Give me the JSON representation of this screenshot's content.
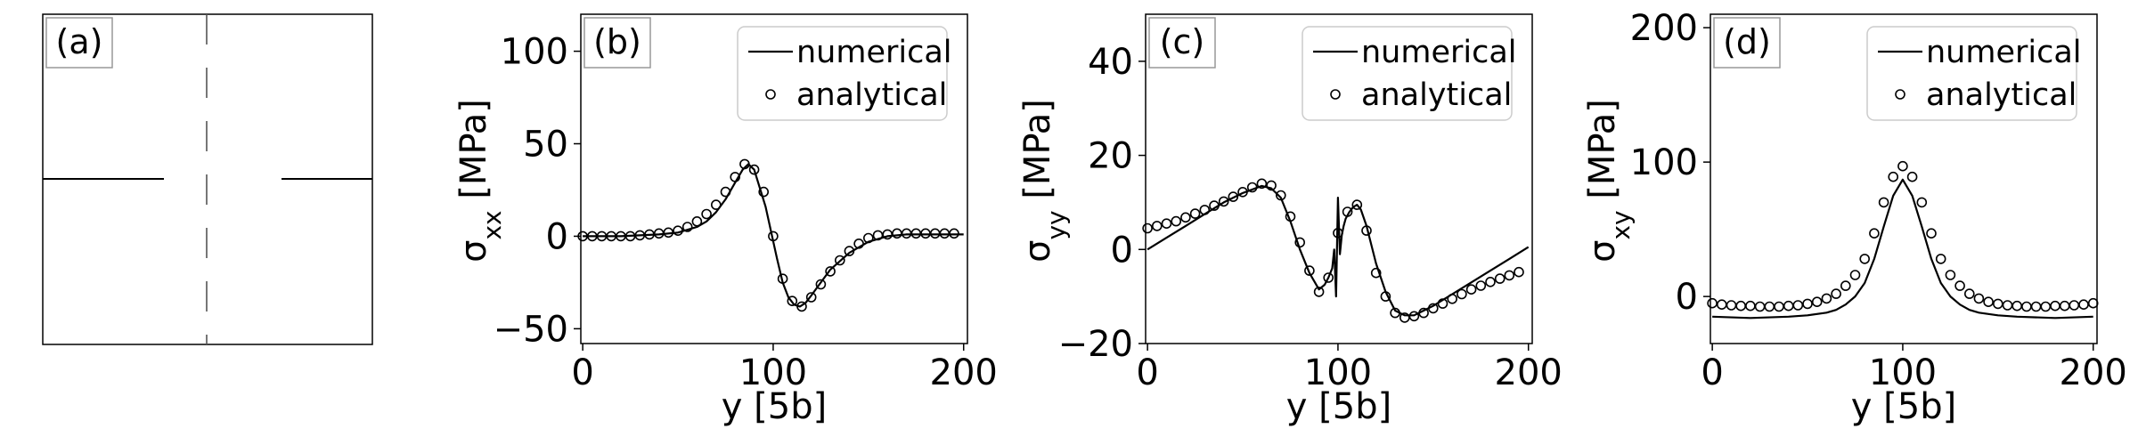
{
  "panel_a": {
    "label": "(a)"
  },
  "chart_data": [
    {
      "type": "line",
      "panel": "(b)",
      "xlabel": "y [5b]",
      "ylabel": "σ_xx [MPa]",
      "ylabel_main": "σ",
      "ylabel_sub": "xx",
      "ylabel_unit": " [MPa]",
      "xlim": [
        -1,
        202
      ],
      "ylim": [
        -58,
        120
      ],
      "xticks": [
        0,
        100,
        200
      ],
      "yticks": [
        -50,
        0,
        50,
        100
      ],
      "ytick_labels": [
        "−50",
        "0",
        "50",
        "100"
      ],
      "legend": [
        "numerical",
        "analytical"
      ],
      "series": [
        {
          "name": "numerical",
          "style": "line",
          "x": [
            0,
            20,
            40,
            50,
            60,
            65,
            70,
            75,
            80,
            84,
            87,
            90,
            93,
            96,
            99,
            102,
            105,
            108,
            111,
            114,
            117,
            120,
            125,
            130,
            140,
            150,
            160,
            170,
            180,
            190,
            200
          ],
          "y": [
            0,
            0,
            1,
            2,
            5,
            8,
            13,
            20,
            29,
            36,
            39,
            36,
            26,
            16,
            2,
            -12,
            -25,
            -33,
            -37,
            -38,
            -36,
            -32,
            -25,
            -18,
            -9,
            -3,
            0,
            1,
            1,
            1,
            1
          ]
        },
        {
          "name": "analytical",
          "style": "marker",
          "x": [
            0,
            5,
            10,
            15,
            20,
            25,
            30,
            35,
            40,
            45,
            50,
            55,
            60,
            65,
            70,
            75,
            80,
            85,
            90,
            95,
            100,
            105,
            110,
            115,
            120,
            125,
            130,
            135,
            140,
            145,
            150,
            155,
            160,
            165,
            170,
            175,
            180,
            185,
            190,
            195
          ],
          "y": [
            0,
            0,
            0,
            0,
            0,
            0,
            0.5,
            1,
            1.5,
            2,
            3,
            5,
            8,
            12,
            17,
            24,
            32,
            39,
            36,
            24,
            0,
            -23,
            -35,
            -38,
            -33,
            -26,
            -19,
            -13,
            -8,
            -4,
            -1,
            0.5,
            1,
            1.5,
            1.5,
            1.5,
            1.5,
            1.5,
            1.5,
            1.5
          ]
        }
      ]
    },
    {
      "type": "line",
      "panel": "(c)",
      "xlabel": "y [5b]",
      "ylabel": "σ_yy [MPa]",
      "ylabel_main": "σ",
      "ylabel_sub": "yy",
      "ylabel_unit": " [MPa]",
      "xlim": [
        -1,
        202
      ],
      "ylim": [
        -20,
        50
      ],
      "xticks": [
        0,
        100,
        200
      ],
      "yticks": [
        -20,
        0,
        20,
        40
      ],
      "ytick_labels": [
        "−20",
        "0",
        "20",
        "40"
      ],
      "legend": [
        "numerical",
        "analytical"
      ],
      "series": [
        {
          "name": "numerical",
          "style": "line",
          "x": [
            0,
            10,
            20,
            30,
            40,
            50,
            60,
            65,
            70,
            75,
            80,
            85,
            90,
            93,
            95,
            97,
            98,
            99,
            100,
            101,
            102,
            103,
            104,
            106,
            108,
            110,
            112,
            115,
            120,
            125,
            130,
            135,
            140,
            145,
            150,
            160,
            170,
            180,
            190,
            200
          ],
          "y": [
            0,
            2.5,
            5,
            7.5,
            10,
            12,
            13.5,
            13,
            11,
            6,
            0,
            -5,
            -8.5,
            -7.5,
            -6,
            -4,
            0,
            -10,
            11,
            -1,
            3,
            5,
            6.5,
            8,
            9,
            9.5,
            8.5,
            5,
            -3,
            -9,
            -13,
            -14,
            -14,
            -13,
            -12,
            -9.5,
            -7,
            -4.5,
            -2,
            0.5
          ]
        },
        {
          "name": "analytical",
          "style": "marker",
          "x": [
            0,
            5,
            10,
            15,
            20,
            25,
            30,
            35,
            40,
            45,
            50,
            55,
            60,
            65,
            70,
            75,
            80,
            85,
            90,
            95,
            100,
            105,
            110,
            115,
            120,
            125,
            130,
            135,
            140,
            145,
            150,
            155,
            160,
            165,
            170,
            175,
            180,
            185,
            190,
            195
          ],
          "y": [
            4.5,
            5,
            5.5,
            6,
            6.8,
            7.6,
            8.4,
            9.3,
            10.2,
            11.2,
            12.2,
            13.2,
            14,
            13.6,
            11.5,
            7,
            1.5,
            -4.5,
            -9,
            -6,
            3.5,
            8,
            9.5,
            4,
            -5,
            -10,
            -13.5,
            -14.5,
            -14.2,
            -13.5,
            -12.5,
            -11.5,
            -10.5,
            -9.5,
            -8.5,
            -7.7,
            -6.9,
            -6.2,
            -5.5,
            -4.8
          ]
        }
      ]
    },
    {
      "type": "line",
      "panel": "(d)",
      "xlabel": "y [5b]",
      "ylabel": "σ_xy [MPa]",
      "ylabel_main": "σ",
      "ylabel_sub": "xy",
      "ylabel_unit": " [MPa]",
      "xlim": [
        -1,
        202
      ],
      "ylim": [
        -35,
        210
      ],
      "xticks": [
        0,
        100,
        200
      ],
      "yticks": [
        0,
        100,
        200
      ],
      "ytick_labels": [
        "0",
        "100",
        "200"
      ],
      "legend": [
        "numerical",
        "analytical"
      ],
      "series": [
        {
          "name": "numerical",
          "style": "line",
          "x": [
            0,
            20,
            40,
            50,
            60,
            65,
            70,
            75,
            80,
            85,
            90,
            95,
            100,
            105,
            110,
            115,
            120,
            125,
            130,
            135,
            140,
            150,
            160,
            180,
            200
          ],
          "y": [
            -15,
            -16,
            -15,
            -14,
            -12,
            -10,
            -6,
            0,
            10,
            28,
            52,
            75,
            87,
            75,
            52,
            28,
            10,
            0,
            -6,
            -10,
            -12,
            -14,
            -15,
            -16,
            -15
          ]
        },
        {
          "name": "analytical",
          "style": "marker",
          "x": [
            0,
            5,
            10,
            15,
            20,
            25,
            30,
            35,
            40,
            45,
            50,
            55,
            60,
            65,
            70,
            75,
            80,
            85,
            90,
            95,
            100,
            105,
            110,
            115,
            120,
            125,
            130,
            135,
            140,
            145,
            150,
            155,
            160,
            165,
            170,
            175,
            180,
            185,
            190,
            195,
            200
          ],
          "y": [
            -5,
            -6,
            -6.5,
            -7,
            -7,
            -7.5,
            -7.5,
            -7.5,
            -7,
            -6.5,
            -5.5,
            -4,
            -1.5,
            2,
            8,
            16,
            28,
            47,
            70,
            89,
            97,
            89,
            70,
            47,
            28,
            16,
            8,
            2,
            -1.5,
            -4,
            -5.5,
            -6.5,
            -7,
            -7.5,
            -7.5,
            -7.5,
            -7,
            -7,
            -6.5,
            -6,
            -5
          ]
        }
      ]
    }
  ]
}
